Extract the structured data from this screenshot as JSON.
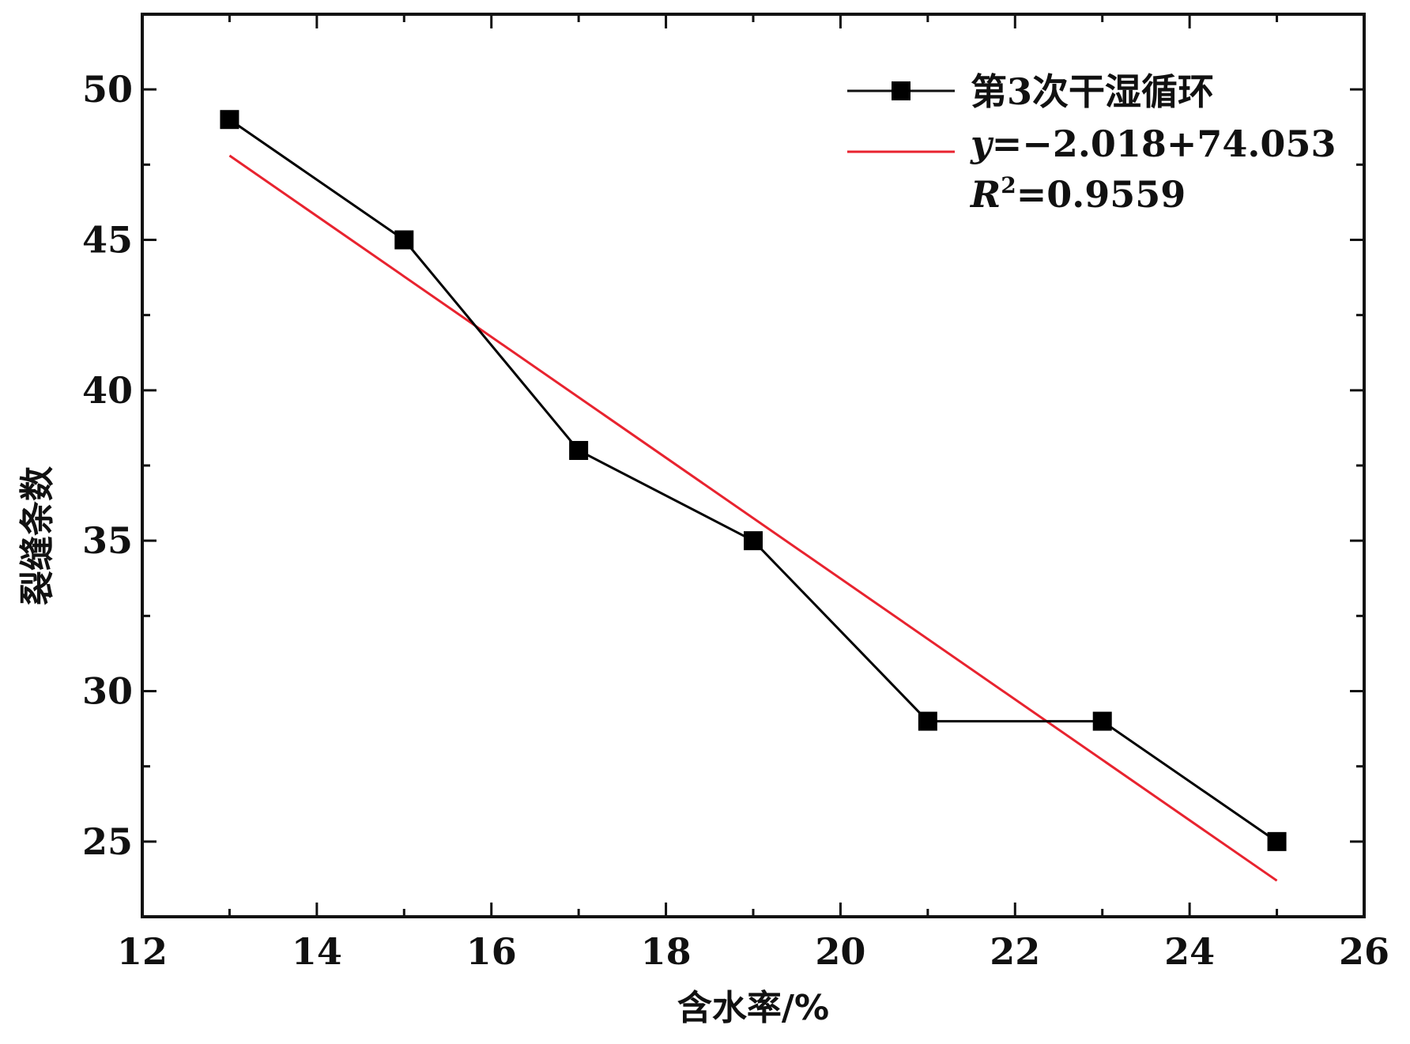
{
  "chart_data": {
    "type": "line",
    "xlabel": "含水率/%",
    "ylabel": "裂缝条数",
    "xlim": [
      12,
      26
    ],
    "ylim": [
      22.5,
      52.5
    ],
    "x_ticks": [
      "12",
      "14",
      "16",
      "18",
      "20",
      "22",
      "24",
      "26"
    ],
    "y_ticks": [
      "25",
      "30",
      "35",
      "40",
      "45",
      "50"
    ],
    "grid": false,
    "legend_position": "top-right",
    "series": [
      {
        "name": "第3次干湿循环",
        "marker": "square",
        "color": "#000000",
        "x": [
          13,
          15,
          17,
          19,
          21,
          23,
          25
        ],
        "y": [
          49,
          45,
          38,
          35,
          29,
          29,
          25
        ]
      }
    ],
    "fit": {
      "color": "#e8232f",
      "x": [
        13,
        25
      ],
      "y": [
        47.8,
        23.7
      ],
      "equation_y": "y",
      "equation_rest": "=−2.018+74.053",
      "r2_label": "R",
      "r2_sup": "2",
      "r2_rest": "=0.9559"
    }
  }
}
